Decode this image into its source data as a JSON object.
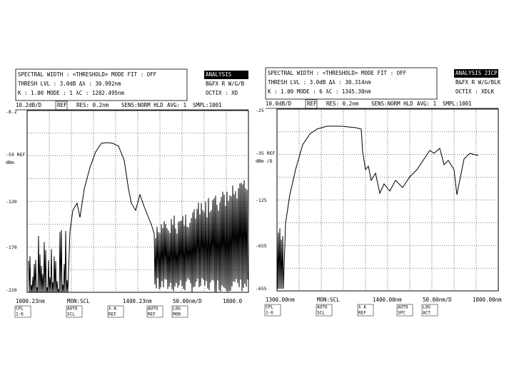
{
  "screens": [
    {
      "status": [
        "SPECTRAL WIDTH : <THRESHOLD>   MODE FIT : OFF",
        "THRESH LVL : 3.0dB        Δλ : 30.992nm",
        "K : 1.00    MODE : 1   λC : 1282.495nm"
      ],
      "side": [
        "ANALYSIS",
        "B&FX R W/G/B",
        "OCTIX : XD"
      ],
      "settings": [
        "10.2dB/D",
        "REF",
        "RES: 0.2nm",
        "SENS:NORM HLD",
        "AVG: 1",
        "SMPL:1001"
      ],
      "y_labels": [
        "-8.2",
        "-59 REF",
        "dBm",
        "-120",
        "-170",
        "-220"
      ],
      "bottom": [
        "1000.23nm",
        "MON:SCL",
        "1400.23nm",
        "50.00nm/D",
        "1800.0"
      ],
      "softkeys": [
        [
          "CPL",
          "1-6"
        ],
        [
          "AUTO",
          "SCL"
        ],
        [
          "λ A",
          "REF"
        ],
        [
          "AUTO",
          "REF"
        ],
        [
          "LOG",
          "MON"
        ]
      ]
    },
    {
      "status": [
        "SPECTRAL WIDTH : <THRESHOLD>   MODE FIT : OFF",
        "THRESH LVL : 3.0dB        Δλ : 30.314nm",
        "K : 1.00    MODE : 6   λC : 1345.30nm"
      ],
      "side": [
        "ANALYSIS 2ICP",
        "B&FX R W/G/BLK",
        "OCTIX : XDLK"
      ],
      "settings": [
        "10.0dB/D",
        "REF",
        "RES: 0.2nm",
        "SENS:NORM HLD",
        "AVG: 1",
        "SMPL:1001"
      ],
      "y_labels": [
        "-25",
        "-35 REF",
        "dBm /D",
        "-125",
        "-655",
        "-655"
      ],
      "bottom": [
        "1300.00nm",
        "MON:SCL",
        "1400.00nm",
        "50.00nm/D",
        "1800.00nm"
      ],
      "softkeys": [
        [
          "CPL",
          "1-6"
        ],
        [
          "AUTO",
          "SCL"
        ],
        [
          "λ A",
          "REF"
        ],
        [
          "AUTO",
          "SPC"
        ],
        [
          "LOG",
          "ACT"
        ]
      ]
    }
  ]
}
